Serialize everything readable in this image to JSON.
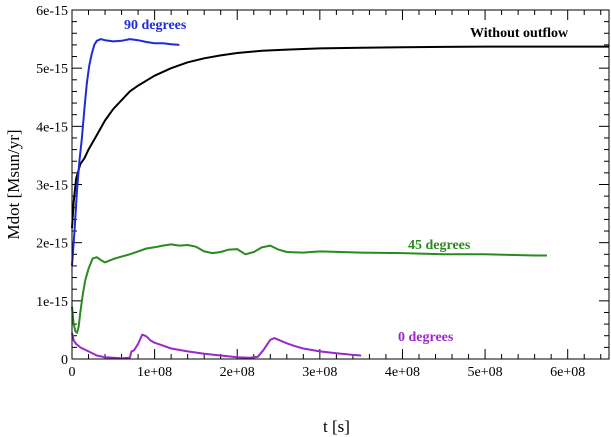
{
  "chart_data": {
    "type": "line",
    "xlabel": "t [s]",
    "ylabel": "Mdot [Msun/yr]",
    "xlim": [
      0,
      650000000
    ],
    "ylim": [
      0,
      6e-15
    ],
    "x_ticks": [
      0,
      100000000,
      200000000,
      300000000,
      400000000,
      500000000,
      600000000
    ],
    "x_tick_labels": [
      "0",
      "1e+08",
      "2e+08",
      "3e+08",
      "4e+08",
      "5e+08",
      "6e+08"
    ],
    "y_ticks": [
      0,
      1e-15,
      2e-15,
      3e-15,
      4e-15,
      5e-15,
      6e-15
    ],
    "y_tick_labels": [
      "0",
      "1e-15",
      "2e-15",
      "3e-15",
      "4e-15",
      "5e-15",
      "6e-15"
    ],
    "grid": false,
    "legend": "none",
    "series": [
      {
        "name": "Without outflow",
        "color": "#000000",
        "x": [
          0,
          2000000,
          5000000,
          10000000,
          15000000,
          20000000,
          30000000,
          40000000,
          50000000,
          60000000,
          70000000,
          80000000,
          100000000,
          120000000,
          140000000,
          160000000,
          180000000,
          200000000,
          230000000,
          260000000,
          300000000,
          350000000,
          400000000,
          450000000,
          500000000,
          550000000,
          600000000,
          650000000
        ],
        "y": [
          2.25e-15,
          2.7e-15,
          3.1e-15,
          3.35e-15,
          3.45e-15,
          3.6e-15,
          3.85e-15,
          4.1e-15,
          4.3e-15,
          4.45e-15,
          4.6e-15,
          4.7e-15,
          4.87e-15,
          5e-15,
          5.1e-15,
          5.17e-15,
          5.22e-15,
          5.26e-15,
          5.3e-15,
          5.32e-15,
          5.34e-15,
          5.35e-15,
          5.36e-15,
          5.365e-15,
          5.37e-15,
          5.37e-15,
          5.37e-15,
          5.37e-15
        ]
      },
      {
        "name": "90 degrees",
        "color": "#1f2bd6",
        "x": [
          0,
          3000000,
          6000000,
          9000000,
          12000000,
          15000000,
          18000000,
          21000000,
          24000000,
          27000000,
          30000000,
          35000000,
          40000000,
          50000000,
          60000000,
          70000000,
          80000000,
          90000000,
          100000000,
          110000000,
          120000000,
          130000000
        ],
        "y": [
          1.6e-15,
          2.2e-15,
          2.9e-15,
          3.4e-15,
          3.8e-15,
          4.3e-15,
          4.75e-15,
          5.05e-15,
          5.25e-15,
          5.4e-15,
          5.47e-15,
          5.5e-15,
          5.48e-15,
          5.46e-15,
          5.47e-15,
          5.5e-15,
          5.48e-15,
          5.45e-15,
          5.43e-15,
          5.43e-15,
          5.41e-15,
          5.4e-15
        ]
      },
      {
        "name": "45 degrees",
        "color": "#2a8a1e",
        "x": [
          0,
          2000000,
          4000000,
          6000000,
          8000000,
          10000000,
          13000000,
          16000000,
          20000000,
          25000000,
          30000000,
          35000000,
          40000000,
          45000000,
          50000000,
          60000000,
          70000000,
          80000000,
          90000000,
          100000000,
          110000000,
          120000000,
          130000000,
          140000000,
          150000000,
          160000000,
          170000000,
          180000000,
          190000000,
          200000000,
          210000000,
          220000000,
          230000000,
          240000000,
          250000000,
          260000000,
          280000000,
          300000000,
          350000000,
          400000000,
          450000000,
          500000000,
          530000000,
          560000000,
          575000000
        ],
        "y": [
          9e-16,
          6e-16,
          4.8e-16,
          4.5e-16,
          5.5e-16,
          8e-16,
          1.1e-15,
          1.35e-15,
          1.55e-15,
          1.73e-15,
          1.75e-15,
          1.7e-15,
          1.66e-15,
          1.69e-15,
          1.72e-15,
          1.76e-15,
          1.8e-15,
          1.85e-15,
          1.9e-15,
          1.92e-15,
          1.95e-15,
          1.97e-15,
          1.95e-15,
          1.96e-15,
          1.93e-15,
          1.85e-15,
          1.82e-15,
          1.84e-15,
          1.88e-15,
          1.89e-15,
          1.8e-15,
          1.84e-15,
          1.92e-15,
          1.95e-15,
          1.88e-15,
          1.84e-15,
          1.83e-15,
          1.85e-15,
          1.83e-15,
          1.82e-15,
          1.8e-15,
          1.8e-15,
          1.79e-15,
          1.78e-15,
          1.78e-15
        ]
      },
      {
        "name": "0 degrees",
        "color": "#9b28c9",
        "x": [
          0,
          2000000,
          5000000,
          10000000,
          20000000,
          30000000,
          40000000,
          50000000,
          60000000,
          70000000,
          72000000,
          75000000,
          80000000,
          85000000,
          90000000,
          95000000,
          100000000,
          110000000,
          120000000,
          140000000,
          160000000,
          180000000,
          200000000,
          215000000,
          225000000,
          232000000,
          240000000,
          245000000,
          250000000,
          260000000,
          270000000,
          280000000,
          300000000,
          320000000,
          340000000,
          350000000
        ],
        "y": [
          4.5e-16,
          3.2e-16,
          2.6e-16,
          2e-16,
          1.3e-16,
          6e-17,
          3e-17,
          2e-17,
          1e-17,
          2e-17,
          1.3e-16,
          1.5e-16,
          2.6e-16,
          4.2e-16,
          3.9e-16,
          3.2e-16,
          2.8e-16,
          2.3e-16,
          1.8e-16,
          1.3e-16,
          9e-17,
          6e-17,
          3e-17,
          2e-17,
          4e-17,
          1.6e-16,
          3.3e-16,
          3.6e-16,
          3.3e-16,
          2.7e-16,
          2.2e-16,
          1.8e-16,
          1.3e-16,
          1e-16,
          7e-17,
          6e-17
        ]
      }
    ]
  }
}
